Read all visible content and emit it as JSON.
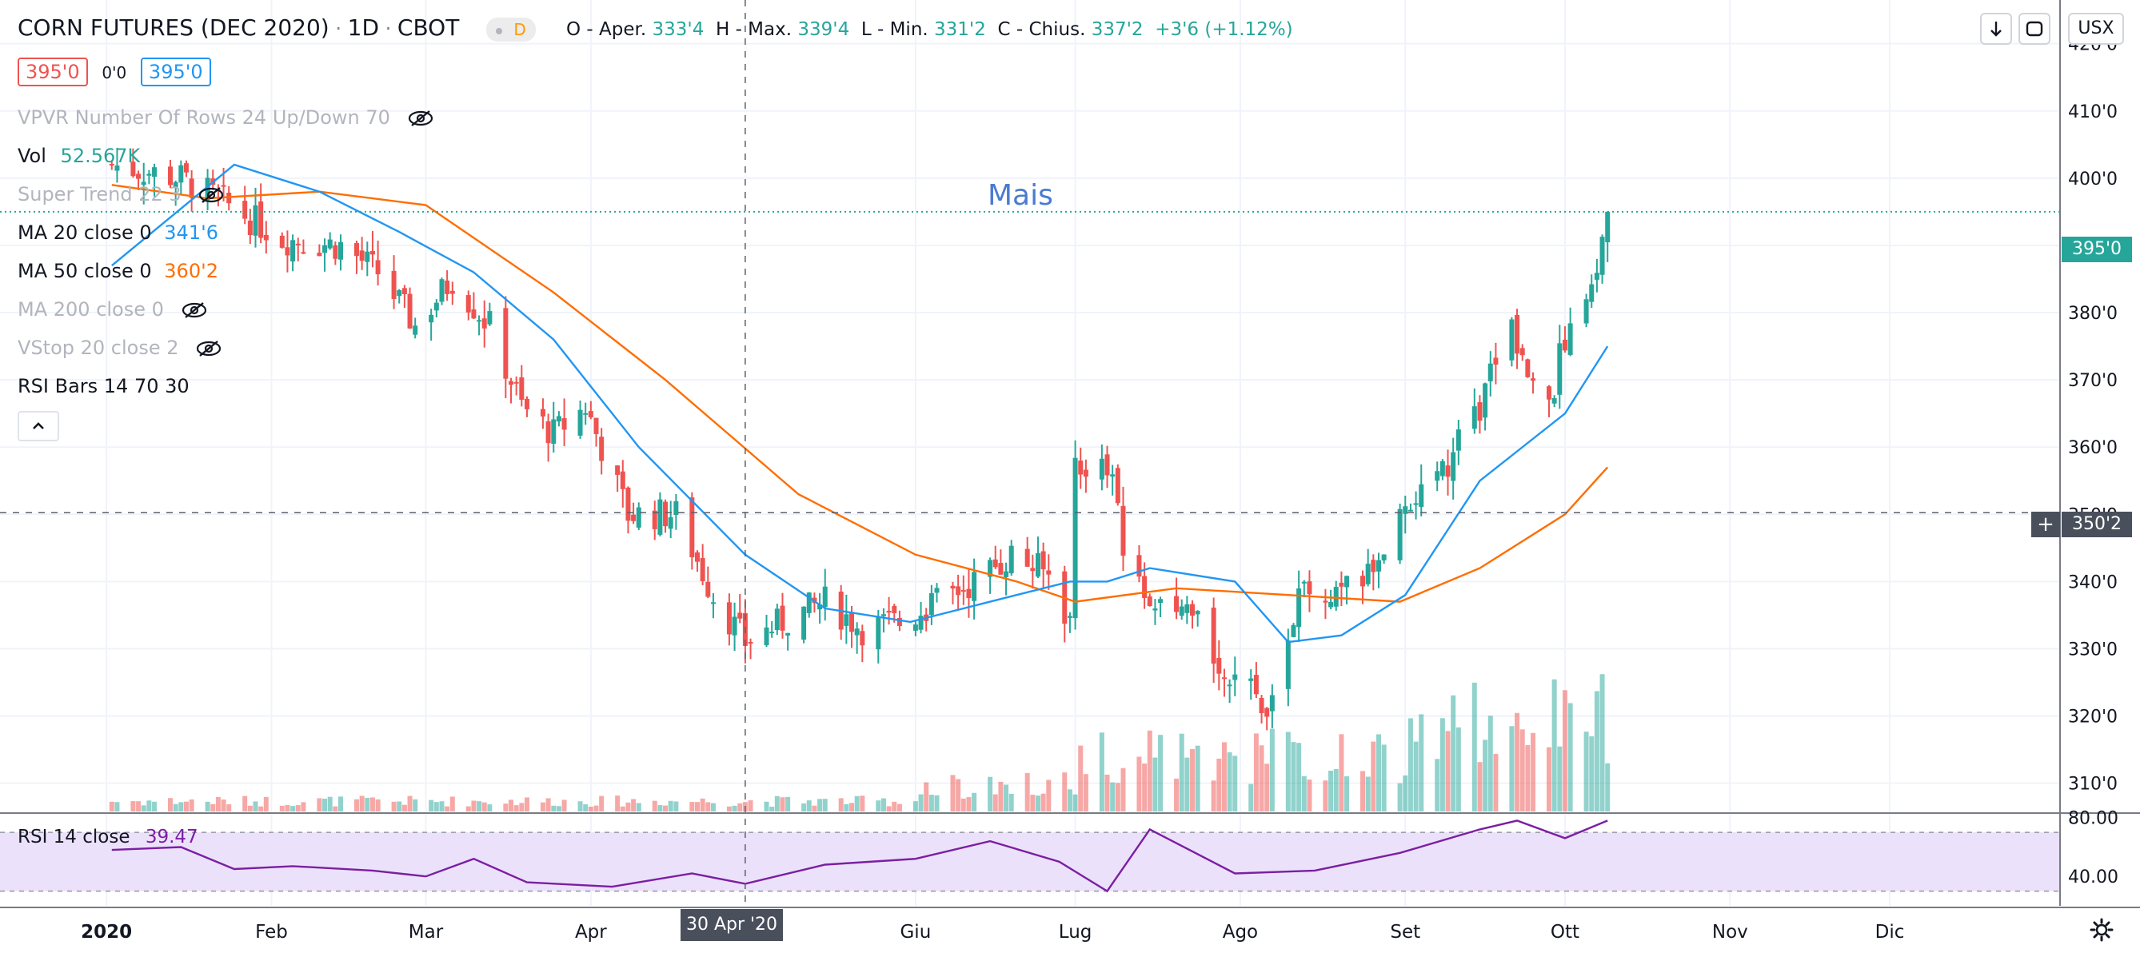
{
  "header": {
    "symbol": "CORN FUTURES (DEC 2020)",
    "interval": "1D",
    "exchange": "CBOT",
    "flag": "D",
    "ohlc": [
      {
        "label": "O - Aper.",
        "value": "333'4"
      },
      {
        "label": "H - Max.",
        "value": "339'4"
      },
      {
        "label": "L - Min.",
        "value": "331'2"
      },
      {
        "label": "C - Chius.",
        "value": "337'2"
      }
    ],
    "change": "+3'6 (+1.12%)",
    "bid": "395'0",
    "spread": "0'0",
    "ask": "395'0",
    "currency": "USX"
  },
  "indicators": {
    "vpvr": "VPVR Number Of Rows 24 Up/Down 70",
    "vol_label": "Vol",
    "vol_value": "52.567K",
    "supertrend": "Super Trend 22 3",
    "ma20_label": "MA 20 close 0",
    "ma20_value": "341'6",
    "ma50_label": "MA 50 close 0",
    "ma50_value": "360'2",
    "ma200_label": "MA 200 close 0",
    "vstop": "VStop 20 close 2",
    "rsi_bars": "RSI Bars 14 70 30",
    "rsi_label": "RSI 14 close",
    "rsi_value": "39.47"
  },
  "chart_data": {
    "type": "candlestick",
    "annotation": "Mais",
    "price_axis": {
      "ticks": [
        {
          "label": "420'0",
          "value": 420
        },
        {
          "label": "410'0",
          "value": 410
        },
        {
          "label": "400'0",
          "value": 400
        },
        {
          "label": "390'0",
          "value": 390
        },
        {
          "label": "380'0",
          "value": 380
        },
        {
          "label": "370'0",
          "value": 370
        },
        {
          "label": "360'0",
          "value": 360
        },
        {
          "label": "350'0",
          "value": 350
        },
        {
          "label": "340'0",
          "value": 340
        },
        {
          "label": "330'0",
          "value": 330
        },
        {
          "label": "320'0",
          "value": 320
        },
        {
          "label": "310'0",
          "value": 310
        }
      ],
      "range": [
        305.8,
        426.5
      ]
    },
    "rsi_axis": {
      "ticks": [
        {
          "label": "80.00",
          "value": 80
        },
        {
          "label": "40.00",
          "value": 40
        }
      ],
      "range": [
        20,
        82
      ]
    },
    "last_price": {
      "label": "395'0",
      "value": 395
    },
    "crosshair": {
      "price_label": "350'2",
      "price": 350.25,
      "date_label": "30 Apr '20",
      "date": "2020-04-30"
    },
    "x_axis": {
      "labels": [
        {
          "label": "2020",
          "date": "2020-01-01"
        },
        {
          "label": "Feb",
          "date": "2020-02-01"
        },
        {
          "label": "Mar",
          "date": "2020-03-01"
        },
        {
          "label": "Apr",
          "date": "2020-04-01"
        },
        {
          "label": "Giu",
          "date": "2020-06-01"
        },
        {
          "label": "Lug",
          "date": "2020-07-01"
        },
        {
          "label": "Ago",
          "date": "2020-08-01"
        },
        {
          "label": "Set",
          "date": "2020-09-01"
        },
        {
          "label": "Ott",
          "date": "2020-10-01"
        },
        {
          "label": "Nov",
          "date": "2020-11-01"
        },
        {
          "label": "Dic",
          "date": "2020-12-01"
        }
      ],
      "range": [
        "2019-12-12",
        "2021-01-02"
      ]
    },
    "rsi_levels": [
      70,
      30
    ],
    "colors": {
      "up": "#26a69a",
      "down": "#ef5350",
      "ma20": "#2196f3",
      "ma50": "#ff6d00",
      "rsi": "#7b1fa2",
      "rsi_band": "#ece1fa"
    },
    "price_series": [
      {
        "date": "2020-01-02",
        "close": 402
      },
      {
        "date": "2020-01-15",
        "close": 400
      },
      {
        "date": "2020-01-24",
        "close": 396
      },
      {
        "date": "2020-02-03",
        "close": 391
      },
      {
        "date": "2020-02-14",
        "close": 390
      },
      {
        "date": "2020-02-21",
        "close": 386
      },
      {
        "date": "2020-02-28",
        "close": 378
      },
      {
        "date": "2020-03-06",
        "close": 385
      },
      {
        "date": "2020-03-13",
        "close": 378
      },
      {
        "date": "2020-03-19",
        "close": 366
      },
      {
        "date": "2020-03-25",
        "close": 362
      },
      {
        "date": "2020-03-31",
        "close": 366
      },
      {
        "date": "2020-04-08",
        "close": 350
      },
      {
        "date": "2020-04-17",
        "close": 350
      },
      {
        "date": "2020-04-24",
        "close": 338
      },
      {
        "date": "2020-04-30",
        "close": 331
      },
      {
        "date": "2020-05-07",
        "close": 334
      },
      {
        "date": "2020-05-15",
        "close": 337
      },
      {
        "date": "2020-05-22",
        "close": 333
      },
      {
        "date": "2020-05-29",
        "close": 334
      },
      {
        "date": "2020-06-05",
        "close": 337
      },
      {
        "date": "2020-06-12",
        "close": 340
      },
      {
        "date": "2020-06-19",
        "close": 344
      },
      {
        "date": "2020-06-26",
        "close": 341
      },
      {
        "date": "2020-06-30",
        "close": 334
      },
      {
        "date": "2020-07-01",
        "close": 358
      },
      {
        "date": "2020-07-08",
        "close": 356
      },
      {
        "date": "2020-07-10",
        "close": 344
      },
      {
        "date": "2020-07-17",
        "close": 335
      },
      {
        "date": "2020-07-24",
        "close": 334
      },
      {
        "date": "2020-07-31",
        "close": 324
      },
      {
        "date": "2020-08-07",
        "close": 322
      },
      {
        "date": "2020-08-12",
        "close": 338
      },
      {
        "date": "2020-08-19",
        "close": 337
      },
      {
        "date": "2020-08-26",
        "close": 342
      },
      {
        "date": "2020-09-01",
        "close": 352
      },
      {
        "date": "2020-09-08",
        "close": 356
      },
      {
        "date": "2020-09-15",
        "close": 366
      },
      {
        "date": "2020-09-21",
        "close": 378
      },
      {
        "date": "2020-09-28",
        "close": 366
      },
      {
        "date": "2020-10-02",
        "close": 380
      },
      {
        "date": "2020-10-06",
        "close": 385
      },
      {
        "date": "2020-10-09",
        "close": 395
      }
    ],
    "ma20_series": [
      {
        "date": "2020-01-02",
        "value": 387
      },
      {
        "date": "2020-01-25",
        "value": 402
      },
      {
        "date": "2020-02-10",
        "value": 398
      },
      {
        "date": "2020-02-25",
        "value": 392
      },
      {
        "date": "2020-03-10",
        "value": 386
      },
      {
        "date": "2020-03-25",
        "value": 376
      },
      {
        "date": "2020-04-10",
        "value": 360
      },
      {
        "date": "2020-04-30",
        "value": 344
      },
      {
        "date": "2020-05-15",
        "value": 336
      },
      {
        "date": "2020-05-31",
        "value": 334
      },
      {
        "date": "2020-06-15",
        "value": 337
      },
      {
        "date": "2020-06-30",
        "value": 340
      },
      {
        "date": "2020-07-07",
        "value": 340
      },
      {
        "date": "2020-07-15",
        "value": 342
      },
      {
        "date": "2020-07-31",
        "value": 340
      },
      {
        "date": "2020-08-10",
        "value": 331
      },
      {
        "date": "2020-08-20",
        "value": 332
      },
      {
        "date": "2020-09-01",
        "value": 338
      },
      {
        "date": "2020-09-15",
        "value": 355
      },
      {
        "date": "2020-10-01",
        "value": 365
      },
      {
        "date": "2020-10-09",
        "value": 375
      }
    ],
    "ma50_series": [
      {
        "date": "2020-01-02",
        "value": 399
      },
      {
        "date": "2020-01-20",
        "value": 397
      },
      {
        "date": "2020-02-10",
        "value": 398
      },
      {
        "date": "2020-03-01",
        "value": 396
      },
      {
        "date": "2020-03-25",
        "value": 383
      },
      {
        "date": "2020-04-15",
        "value": 370
      },
      {
        "date": "2020-05-10",
        "value": 353
      },
      {
        "date": "2020-06-01",
        "value": 344
      },
      {
        "date": "2020-06-20",
        "value": 340
      },
      {
        "date": "2020-07-01",
        "value": 337
      },
      {
        "date": "2020-07-20",
        "value": 339
      },
      {
        "date": "2020-08-10",
        "value": 338
      },
      {
        "date": "2020-08-31",
        "value": 337
      },
      {
        "date": "2020-09-15",
        "value": 342
      },
      {
        "date": "2020-10-01",
        "value": 350
      },
      {
        "date": "2020-10-09",
        "value": 357
      }
    ],
    "rsi_series": [
      {
        "date": "2020-01-02",
        "value": 58
      },
      {
        "date": "2020-01-15",
        "value": 60
      },
      {
        "date": "2020-01-25",
        "value": 45
      },
      {
        "date": "2020-02-05",
        "value": 47
      },
      {
        "date": "2020-02-20",
        "value": 44
      },
      {
        "date": "2020-03-01",
        "value": 40
      },
      {
        "date": "2020-03-10",
        "value": 52
      },
      {
        "date": "2020-03-20",
        "value": 36
      },
      {
        "date": "2020-04-05",
        "value": 33
      },
      {
        "date": "2020-04-20",
        "value": 42
      },
      {
        "date": "2020-04-30",
        "value": 35
      },
      {
        "date": "2020-05-15",
        "value": 48
      },
      {
        "date": "2020-06-01",
        "value": 52
      },
      {
        "date": "2020-06-15",
        "value": 64
      },
      {
        "date": "2020-06-28",
        "value": 50
      },
      {
        "date": "2020-07-07",
        "value": 30
      },
      {
        "date": "2020-07-15",
        "value": 72
      },
      {
        "date": "2020-07-31",
        "value": 42
      },
      {
        "date": "2020-08-15",
        "value": 44
      },
      {
        "date": "2020-08-31",
        "value": 56
      },
      {
        "date": "2020-09-15",
        "value": 72
      },
      {
        "date": "2020-09-22",
        "value": 78
      },
      {
        "date": "2020-10-01",
        "value": 66
      },
      {
        "date": "2020-10-09",
        "value": 78
      }
    ],
    "volume_pattern": "low Jan–May, rising Jun–Oct"
  }
}
